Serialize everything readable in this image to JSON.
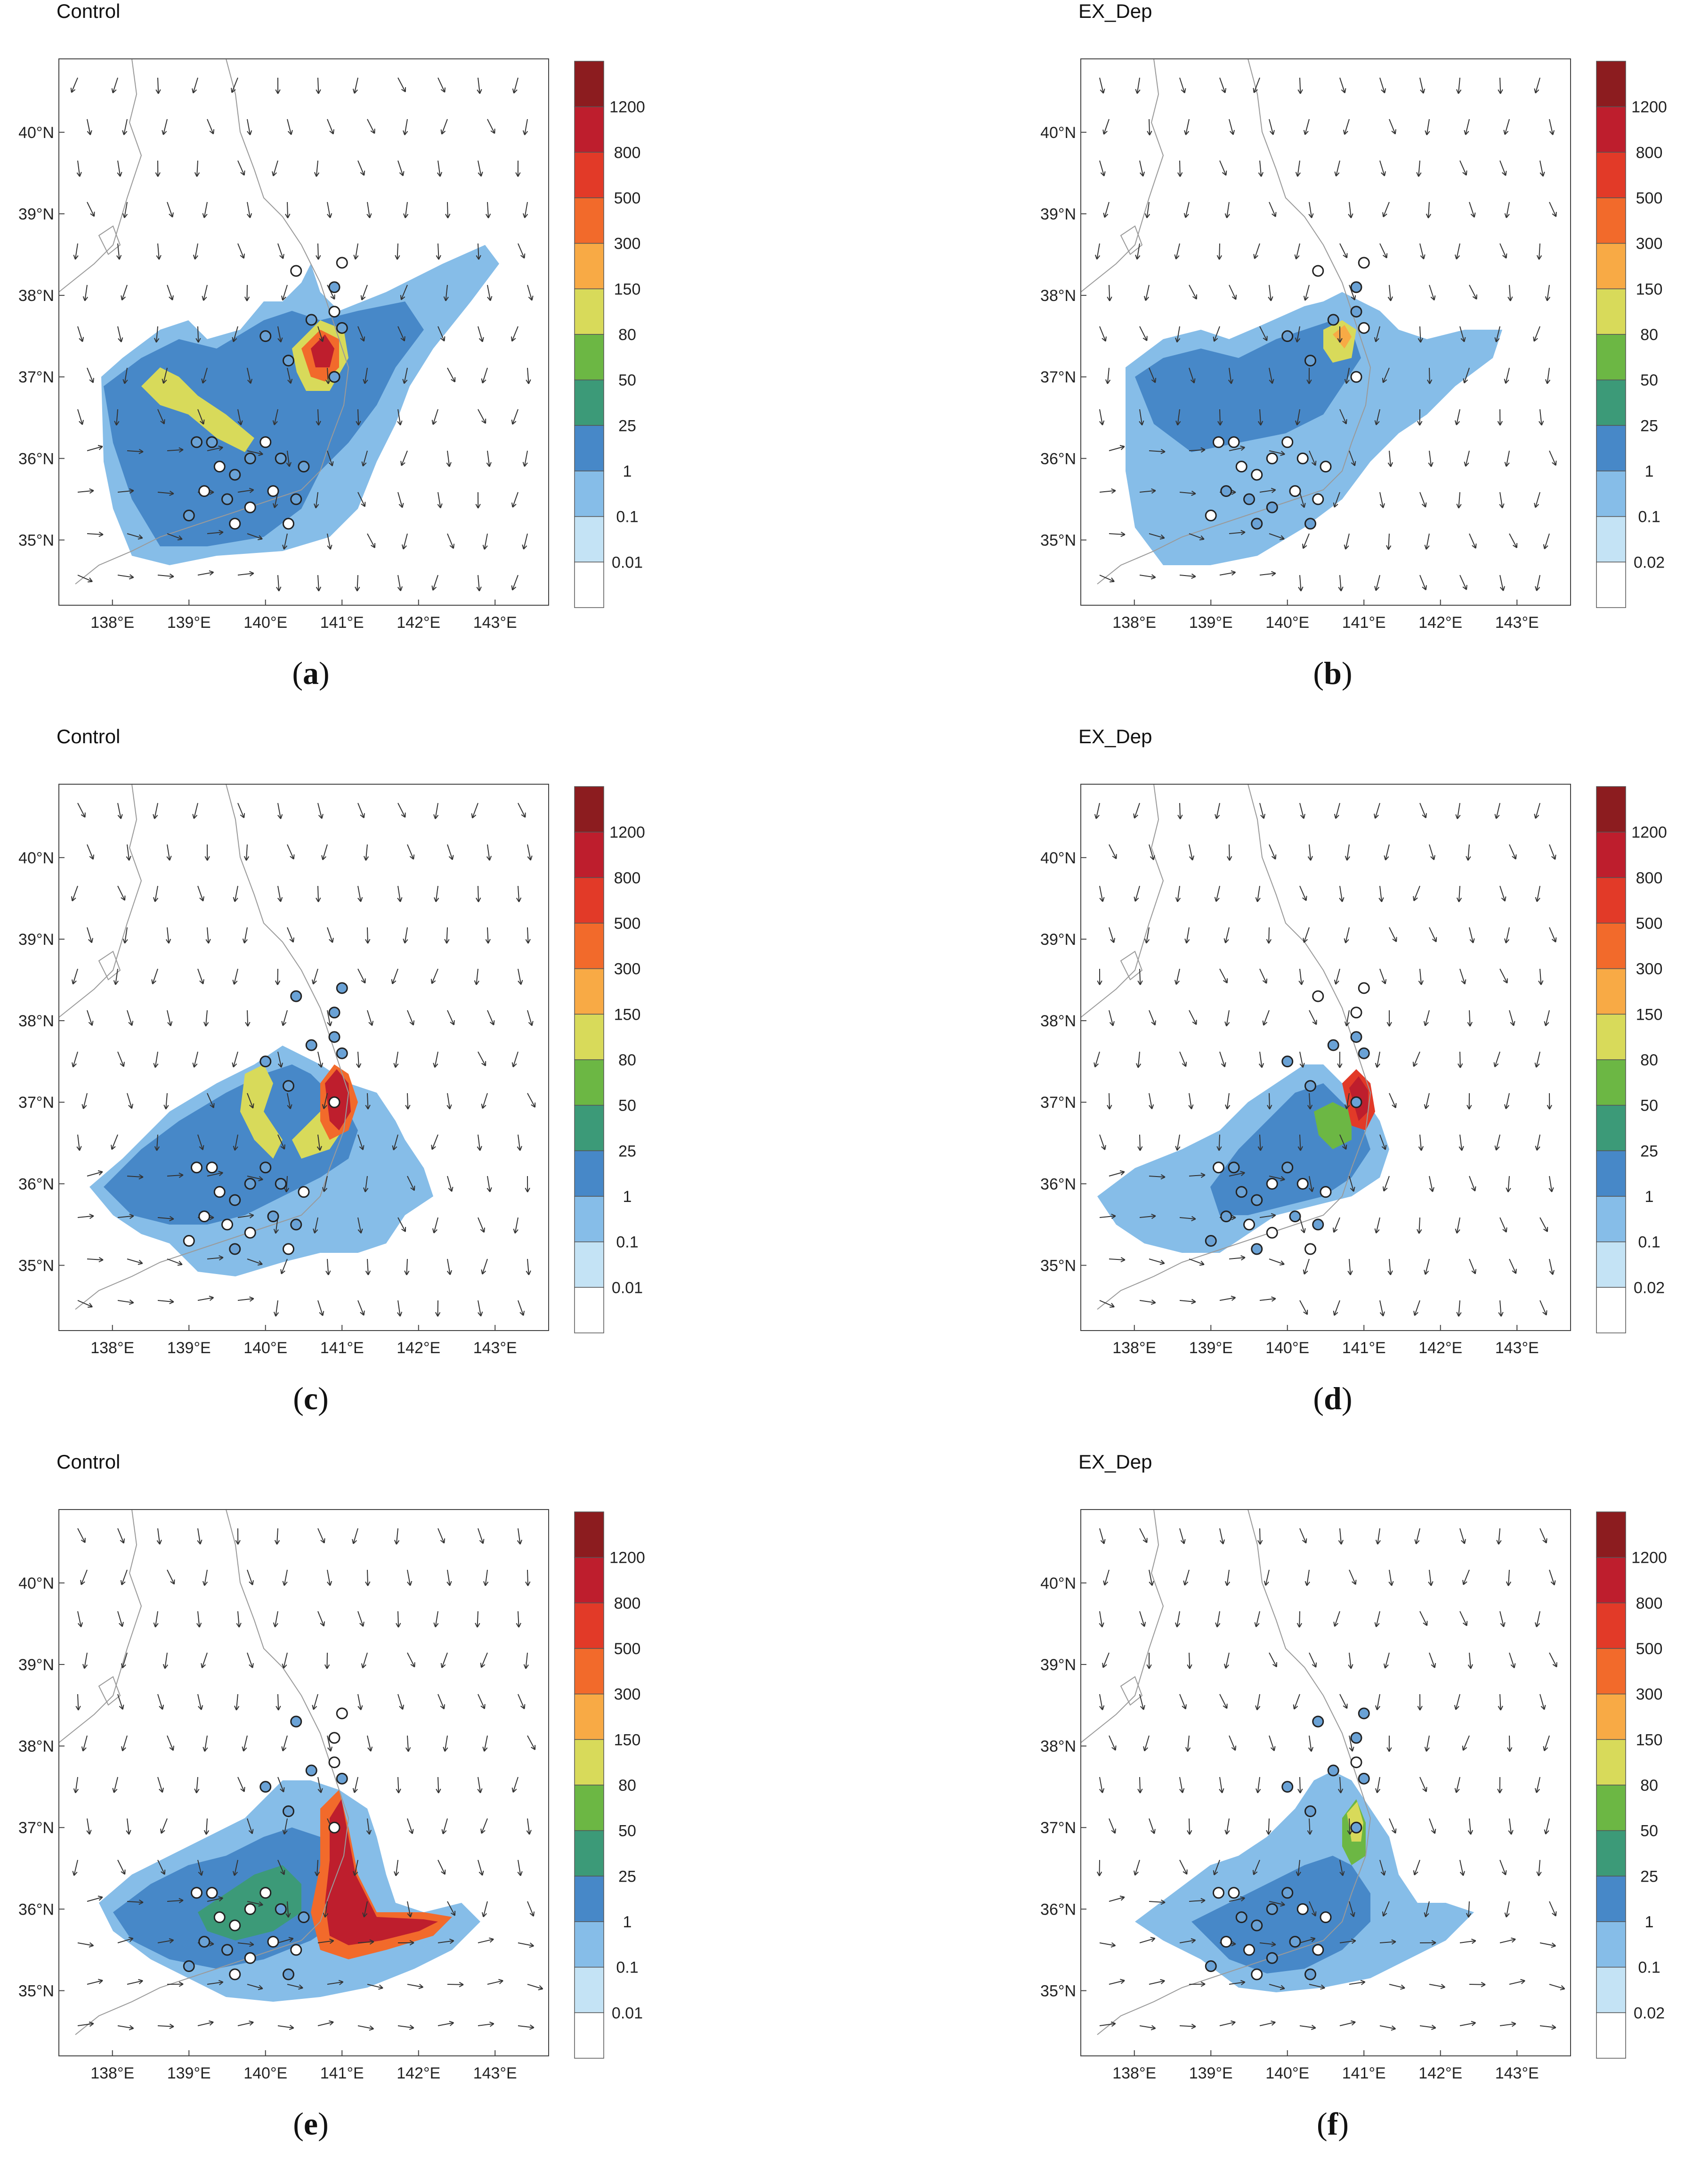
{
  "chart_data": [
    {
      "type": "heatmap",
      "panel_label": "a",
      "title": "Control",
      "xaxis_ticks": [
        "138°E",
        "139°E",
        "140°E",
        "141°E",
        "142°E",
        "143°E"
      ],
      "yaxis_ticks": [
        "35°N",
        "36°N",
        "37°N",
        "38°N",
        "39°N",
        "40°N"
      ],
      "xlim": [
        137.3,
        143.7
      ],
      "ylim": [
        34.2,
        40.9
      ],
      "colorbar_labels": [
        "1200",
        "800",
        "500",
        "300",
        "150",
        "80",
        "50",
        "25",
        "1",
        "0.1",
        "0.01"
      ],
      "wind_vectors": "northerly over north, westerly over plume region",
      "hotspot": {
        "lon": 140.75,
        "lat": 37.35,
        "level": "800-1200"
      }
    },
    {
      "type": "heatmap",
      "panel_label": "b",
      "title": "EX_Dep",
      "xaxis_ticks": [
        "138°E",
        "139°E",
        "140°E",
        "141°E",
        "142°E",
        "143°E"
      ],
      "yaxis_ticks": [
        "35°N",
        "36°N",
        "37°N",
        "38°N",
        "39°N",
        "40°N"
      ],
      "xlim": [
        137.3,
        143.7
      ],
      "ylim": [
        34.2,
        40.9
      ],
      "colorbar_labels": [
        "1200",
        "800",
        "500",
        "300",
        "150",
        "80",
        "50",
        "25",
        "1",
        "0.1",
        "0.02"
      ],
      "hotspot": {
        "lon": 140.8,
        "lat": 37.4,
        "level": "300-500"
      }
    },
    {
      "type": "heatmap",
      "panel_label": "c",
      "title": "Control",
      "xaxis_ticks": [
        "138°E",
        "139°E",
        "140°E",
        "141°E",
        "142°E",
        "143°E"
      ],
      "yaxis_ticks": [
        "35°N",
        "36°N",
        "37°N",
        "38°N",
        "39°N",
        "40°N"
      ],
      "xlim": [
        137.3,
        143.7
      ],
      "ylim": [
        34.2,
        40.9
      ],
      "colorbar_labels": [
        "1200",
        "800",
        "500",
        "300",
        "150",
        "80",
        "50",
        "25",
        "1",
        "0.1",
        "0.01"
      ],
      "hotspot": {
        "lon": 141.0,
        "lat": 37.0,
        "level": "800-1200"
      }
    },
    {
      "type": "heatmap",
      "panel_label": "d",
      "title": "EX_Dep",
      "xaxis_ticks": [
        "138°E",
        "139°E",
        "140°E",
        "141°E",
        "142°E",
        "143°E"
      ],
      "yaxis_ticks": [
        "35°N",
        "36°N",
        "37°N",
        "38°N",
        "39°N",
        "40°N"
      ],
      "xlim": [
        137.3,
        143.7
      ],
      "ylim": [
        34.2,
        40.9
      ],
      "colorbar_labels": [
        "1200",
        "800",
        "500",
        "300",
        "150",
        "80",
        "50",
        "25",
        "1",
        "0.1",
        "0.02"
      ],
      "hotspot": {
        "lon": 141.0,
        "lat": 37.2,
        "level": "800-1200"
      }
    },
    {
      "type": "heatmap",
      "panel_label": "e",
      "title": "Control",
      "xaxis_ticks": [
        "138°E",
        "139°E",
        "140°E",
        "141°E",
        "142°E",
        "143°E"
      ],
      "yaxis_ticks": [
        "35°N",
        "36°N",
        "37°N",
        "38°N",
        "39°N",
        "40°N"
      ],
      "xlim": [
        137.3,
        143.7
      ],
      "ylim": [
        34.2,
        40.9
      ],
      "colorbar_labels": [
        "1200",
        "800",
        "500",
        "300",
        "150",
        "80",
        "50",
        "25",
        "1",
        "0.1",
        "0.01"
      ],
      "hotspot": {
        "lon": 141.0,
        "lat": 36.4,
        "level": "800-1200"
      }
    },
    {
      "type": "heatmap",
      "panel_label": "f",
      "title": "EX_Dep",
      "xaxis_ticks": [
        "138°E",
        "139°E",
        "140°E",
        "141°E",
        "142°E",
        "143°E"
      ],
      "yaxis_ticks": [
        "35°N",
        "36°N",
        "37°N",
        "38°N",
        "39°N",
        "40°N"
      ],
      "xlim": [
        137.3,
        143.7
      ],
      "ylim": [
        34.2,
        40.9
      ],
      "colorbar_labels": [
        "1200",
        "800",
        "500",
        "300",
        "150",
        "80",
        "50",
        "25",
        "1",
        "0.1",
        "0.02"
      ],
      "hotspot": {
        "lon": 140.95,
        "lat": 37.1,
        "level": "150-300"
      }
    }
  ],
  "colors": {
    "levels": [
      "#8c1c1f",
      "#be1e2d",
      "#e23a28",
      "#f26a2b",
      "#f8aa45",
      "#d8da5a",
      "#6cb744",
      "#3c9a78",
      "#4788c8",
      "#86bde8",
      "#c4e3f5",
      "#ffffff"
    ]
  }
}
